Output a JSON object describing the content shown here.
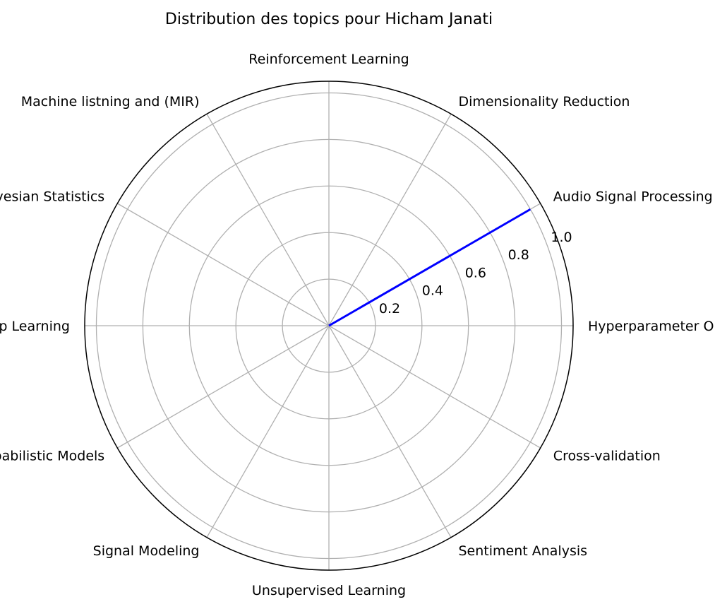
{
  "chart_data": {
    "type": "radar",
    "title": "Distribution des topics pour Hicham Janati",
    "categories": [
      "Hyperparameter Optimization",
      "Audio Signal Processing",
      "Dimensionality Reduction",
      "Reinforcement Learning",
      "Machine listning and (MIR)",
      "Bayesian Statistics",
      "Deep Learning",
      "Probabilistic Models",
      "Signal Modeling",
      "Unsupervised Learning",
      "Sentiment Analysis",
      "Cross-validation"
    ],
    "series": [
      {
        "values": [
          0,
          1.0,
          0,
          0,
          0,
          0,
          0,
          0,
          0,
          0,
          0,
          0
        ]
      }
    ],
    "rlim": [
      0,
      1.05
    ],
    "r_ticks": [
      0.2,
      0.4,
      0.6,
      0.8,
      1.0
    ],
    "r_tick_labels": [
      "0.2",
      "0.4",
      "0.6",
      "0.8",
      "1.0"
    ],
    "grid": true,
    "colors": {
      "series": "#0000ff",
      "grid": "#b0b0b0",
      "frame": "#000000"
    }
  }
}
